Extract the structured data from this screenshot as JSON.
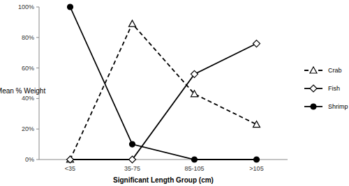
{
  "chart_data": {
    "type": "line",
    "y_label": "Mean % Weight",
    "x_label": "Significant Length Group (cm)",
    "categories": [
      "<35",
      "35-75",
      "85-105",
      ">105"
    ],
    "series": [
      {
        "name": "Crab",
        "color": "#000000",
        "marker": "triangle",
        "line_style": "dashed",
        "values": [
          0,
          89,
          43,
          23
        ]
      },
      {
        "name": "Fish",
        "color": "#000000",
        "marker": "diamond",
        "line_style": "solid",
        "values": [
          0,
          0,
          56,
          76
        ]
      },
      {
        "name": "Shrimp",
        "color": "#000000",
        "marker": "circle",
        "line_style": "solid",
        "values": [
          100,
          10,
          0,
          0
        ]
      }
    ],
    "ylim": [
      0,
      100
    ],
    "yticks": [
      {
        "value": 0,
        "label": "0%"
      },
      {
        "value": 20,
        "label": "20%"
      },
      {
        "value": 40,
        "label": "40%"
      },
      {
        "value": 60,
        "label": "60%"
      },
      {
        "value": 80,
        "label": "80%"
      },
      {
        "value": 100,
        "label": "100%"
      }
    ],
    "grid": false,
    "legend": "right"
  }
}
